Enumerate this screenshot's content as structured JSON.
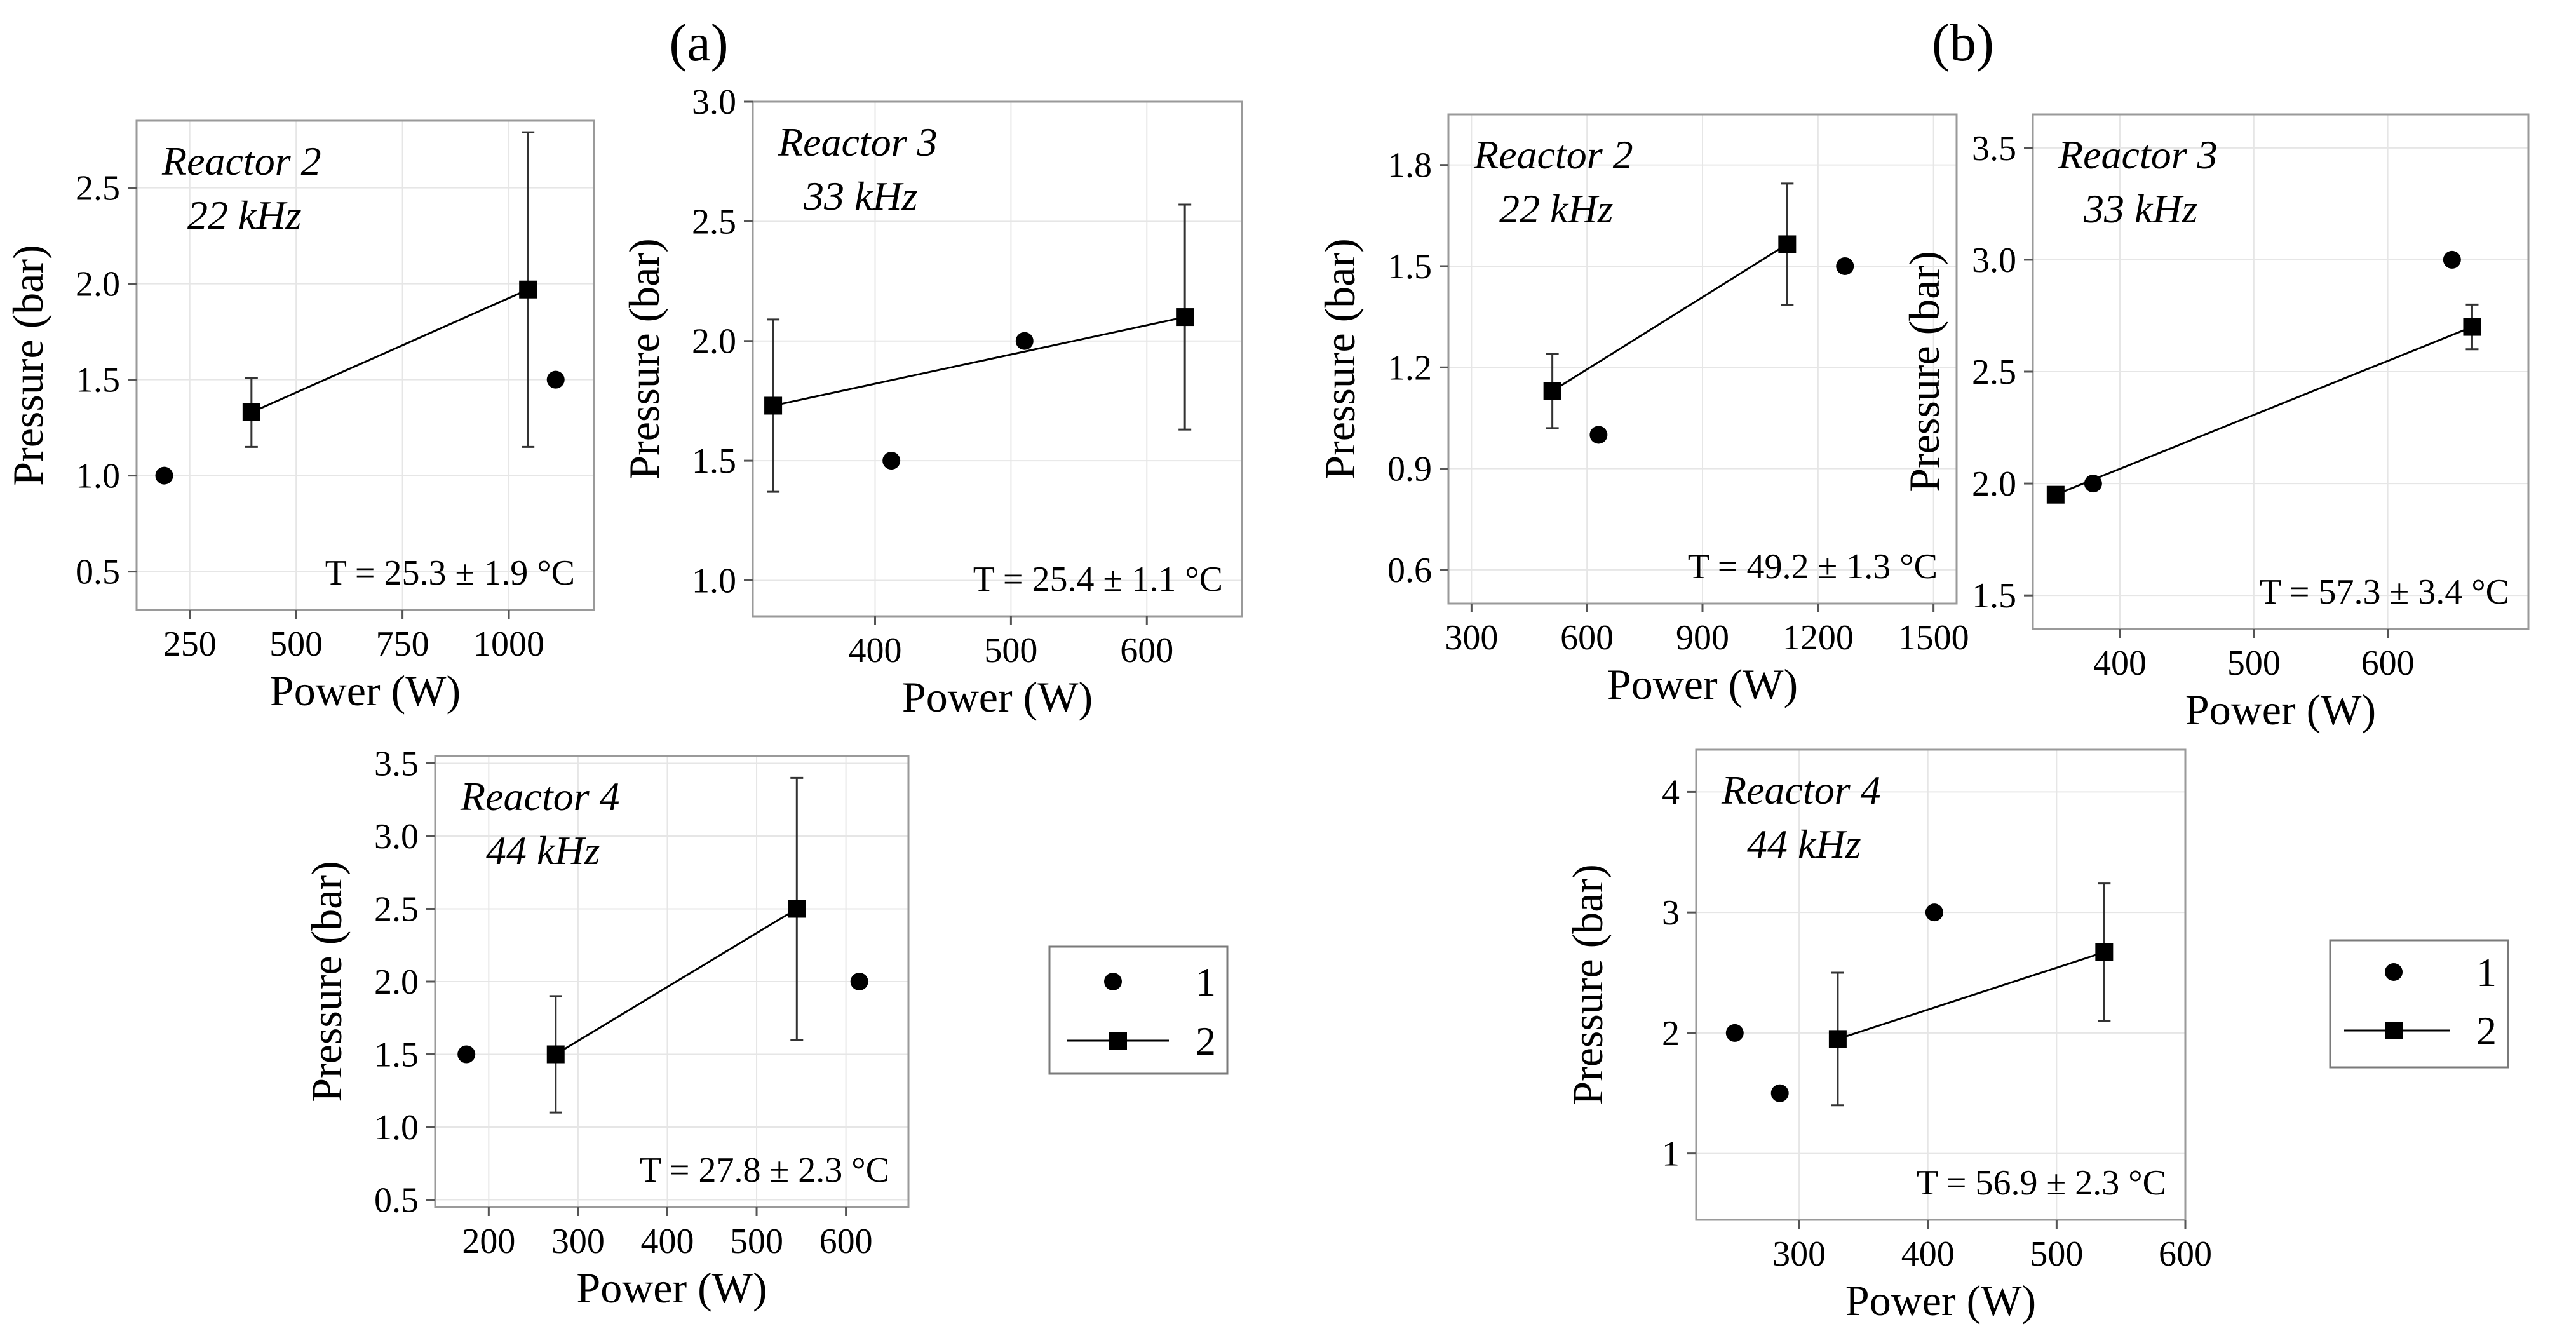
{
  "figure": {
    "panel_labels": [
      "(a)",
      "(b)"
    ],
    "legend": [
      {
        "marker": "circle",
        "line": false,
        "label": "1"
      },
      {
        "marker": "square",
        "line": true,
        "label": "2"
      }
    ],
    "colors": {
      "ink": "#000000",
      "grid": "#e6e6e6",
      "frame": "#9a9a9a"
    }
  },
  "chart_data": [
    {
      "id": "a-r2",
      "panel": "(a)",
      "type": "scatter",
      "xlabel": "Power (W)",
      "ylabel": "Pressure (bar)",
      "annotation": [
        "Reactor 2",
        "22 kHz"
      ],
      "temperature": "T = 25.3 ± 1.9 °C",
      "xlim": [
        125,
        1200
      ],
      "ylim": [
        0.3,
        2.85
      ],
      "xticks": [
        250,
        500,
        750,
        1000
      ],
      "yticks": [
        0.5,
        1.0,
        1.5,
        2.0,
        2.5
      ],
      "ytick_labels": [
        "0.5",
        "1.0",
        "1.5",
        "2.0",
        "2.5"
      ],
      "series": [
        {
          "name": "1",
          "marker": "circle",
          "line": false,
          "x": [
            190,
            1110
          ],
          "y": [
            1.0,
            1.5
          ]
        },
        {
          "name": "2",
          "marker": "square",
          "line": true,
          "x": [
            395,
            1045
          ],
          "y": [
            1.33,
            1.97
          ],
          "yerr": [
            0.18,
            0.82
          ]
        }
      ]
    },
    {
      "id": "a-r3",
      "panel": "(a)",
      "type": "scatter",
      "xlabel": "Power (W)",
      "ylabel": "Pressure (bar)",
      "annotation": [
        "Reactor 3",
        "33 kHz"
      ],
      "temperature": "T = 25.4 ± 1.1 °C",
      "xlim": [
        310,
        670
      ],
      "ylim": [
        0.85,
        3.0
      ],
      "xticks": [
        400,
        500,
        600
      ],
      "yticks": [
        1.0,
        1.5,
        2.0,
        2.5,
        3.0
      ],
      "ytick_labels": [
        "1.0",
        "1.5",
        "2.0",
        "2.5",
        "3.0"
      ],
      "series": [
        {
          "name": "1",
          "marker": "circle",
          "line": false,
          "x": [
            412,
            510
          ],
          "y": [
            1.5,
            2.0
          ]
        },
        {
          "name": "2",
          "marker": "square",
          "line": true,
          "x": [
            325,
            628
          ],
          "y": [
            1.73,
            2.1
          ],
          "yerr": [
            0.36,
            0.47
          ]
        }
      ]
    },
    {
      "id": "a-r4",
      "panel": "(a)",
      "type": "scatter",
      "xlabel": "Power (W)",
      "ylabel": "Pressure (bar)",
      "annotation": [
        "Reactor 4",
        "44 kHz"
      ],
      "temperature": "T = 27.8 ± 2.3 °C",
      "xlim": [
        140,
        670
      ],
      "ylim": [
        0.45,
        3.55
      ],
      "xticks": [
        200,
        300,
        400,
        500,
        600
      ],
      "yticks": [
        0.5,
        1.0,
        1.5,
        2.0,
        2.5,
        3.0,
        3.5
      ],
      "ytick_labels": [
        "0.5",
        "1.0",
        "1.5",
        "2.0",
        "2.5",
        "3.0",
        "3.5"
      ],
      "series": [
        {
          "name": "1",
          "marker": "circle",
          "line": false,
          "x": [
            175,
            615
          ],
          "y": [
            1.5,
            2.0
          ]
        },
        {
          "name": "2",
          "marker": "square",
          "line": true,
          "x": [
            275,
            545
          ],
          "y": [
            1.5,
            2.5
          ],
          "yerr": [
            0.4,
            0.9
          ]
        }
      ]
    },
    {
      "id": "b-r2",
      "panel": "(b)",
      "type": "scatter",
      "xlabel": "Power (W)",
      "ylabel": "Pressure (bar)",
      "annotation": [
        "Reactor 2",
        "22 kHz"
      ],
      "temperature": "T = 49.2 ± 1.3 °C",
      "xlim": [
        240,
        1560
      ],
      "ylim": [
        0.5,
        1.95
      ],
      "xticks": [
        300,
        600,
        900,
        1200,
        1500
      ],
      "yticks": [
        0.6,
        0.9,
        1.2,
        1.5,
        1.8
      ],
      "ytick_labels": [
        "0.6",
        "0.9",
        "1.2",
        "1.5",
        "1.8"
      ],
      "series": [
        {
          "name": "1",
          "marker": "circle",
          "line": false,
          "x": [
            630,
            1270
          ],
          "y": [
            1.0,
            1.5
          ]
        },
        {
          "name": "2",
          "marker": "square",
          "line": true,
          "x": [
            510,
            1120
          ],
          "y": [
            1.13,
            1.565
          ],
          "yerr": [
            0.11,
            0.18
          ]
        }
      ]
    },
    {
      "id": "b-r3",
      "panel": "(b)",
      "type": "scatter",
      "xlabel": "Power (W)",
      "ylabel": "Pressure (bar)",
      "annotation": [
        "Reactor 3",
        "33 kHz"
      ],
      "temperature": "T = 57.3 ± 3.4 °C",
      "xlim": [
        335,
        705
      ],
      "ylim": [
        1.35,
        3.65
      ],
      "xticks": [
        400,
        500,
        600
      ],
      "yticks": [
        1.5,
        2.0,
        2.5,
        3.0,
        3.5
      ],
      "ytick_labels": [
        "1.5",
        "2.0",
        "2.5",
        "3.0",
        "3.5"
      ],
      "series": [
        {
          "name": "1",
          "marker": "circle",
          "line": false,
          "x": [
            380,
            648
          ],
          "y": [
            2.0,
            3.0
          ]
        },
        {
          "name": "2",
          "marker": "square",
          "line": true,
          "x": [
            352,
            663
          ],
          "y": [
            1.95,
            2.7
          ],
          "yerr": [
            0.03,
            0.1
          ]
        }
      ]
    },
    {
      "id": "b-r4",
      "panel": "(b)",
      "type": "scatter",
      "xlabel": "Power (W)",
      "ylabel": "Pressure (bar)",
      "annotation": [
        "Reactor 4",
        "44 kHz"
      ],
      "temperature": "T = 56.9 ± 2.3 °C",
      "xlim": [
        220,
        600
      ],
      "ylim": [
        0.45,
        4.35
      ],
      "xticks": [
        300,
        400,
        500,
        600
      ],
      "yticks": [
        1,
        2,
        3,
        4
      ],
      "ytick_labels": [
        "1",
        "2",
        "3",
        "4"
      ],
      "series": [
        {
          "name": "1",
          "marker": "circle",
          "line": false,
          "x": [
            250,
            285,
            405
          ],
          "y": [
            2.0,
            1.5,
            3.0
          ]
        },
        {
          "name": "2",
          "marker": "square",
          "line": true,
          "x": [
            330,
            537
          ],
          "y": [
            1.95,
            2.67
          ],
          "yerr": [
            0.55,
            0.57
          ]
        }
      ]
    }
  ]
}
